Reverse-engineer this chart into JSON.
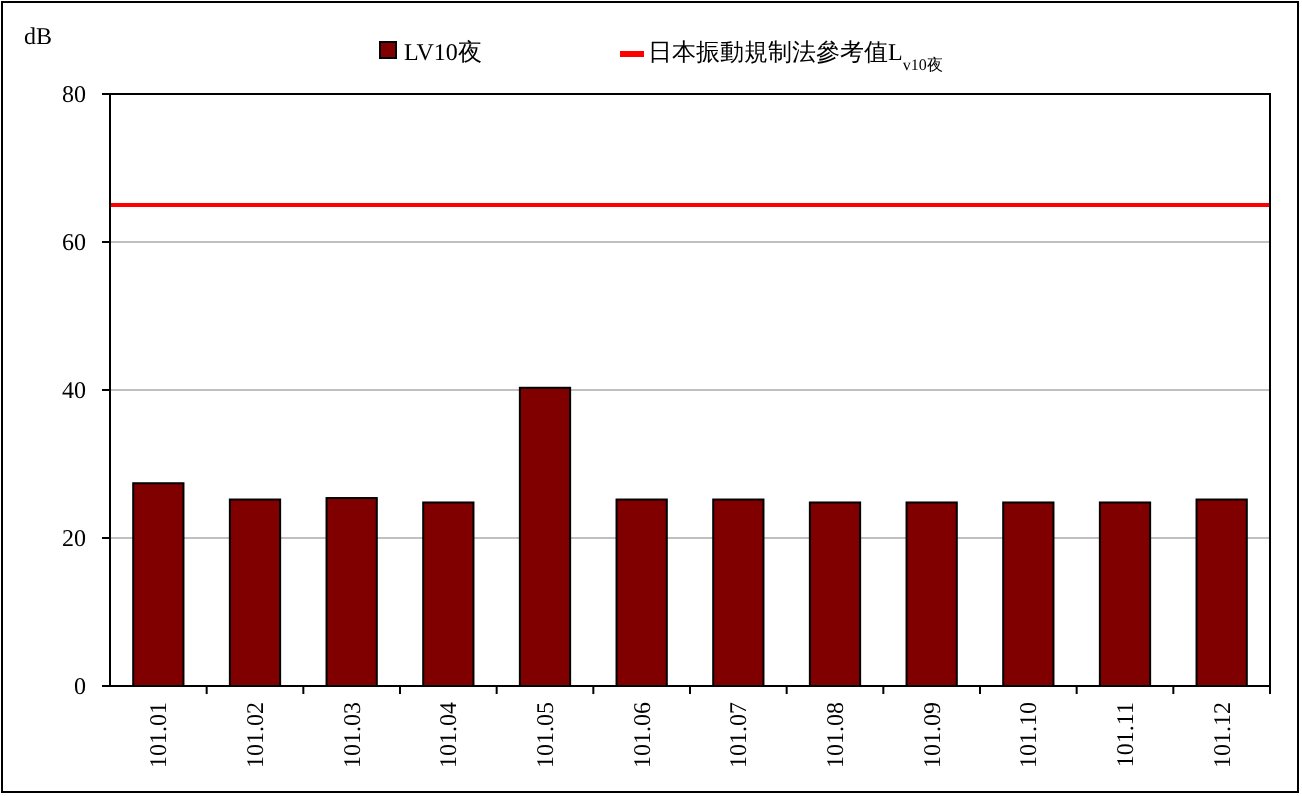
{
  "chart_data": {
    "type": "bar",
    "ylabel": "dB",
    "categories": [
      "101.01",
      "101.02",
      "101.03",
      "101.04",
      "101.05",
      "101.06",
      "101.07",
      "101.08",
      "101.09",
      "101.10",
      "101.11",
      "101.12"
    ],
    "series": [
      {
        "name": "LV10夜",
        "color": "#800000",
        "values": [
          27.4,
          25.2,
          25.4,
          24.8,
          40.3,
          25.2,
          25.2,
          24.8,
          24.8,
          24.8,
          24.8,
          25.2
        ]
      }
    ],
    "ylim": [
      0,
      80
    ],
    "yticks": [
      0,
      20,
      40,
      60,
      80
    ],
    "grid": "y",
    "legend": "top",
    "ref_lines": [
      {
        "axis": "y",
        "value": 65,
        "label": "日本振動規制法參考值L$_{v10夜}$",
        "color": "#ff0000"
      }
    ]
  }
}
